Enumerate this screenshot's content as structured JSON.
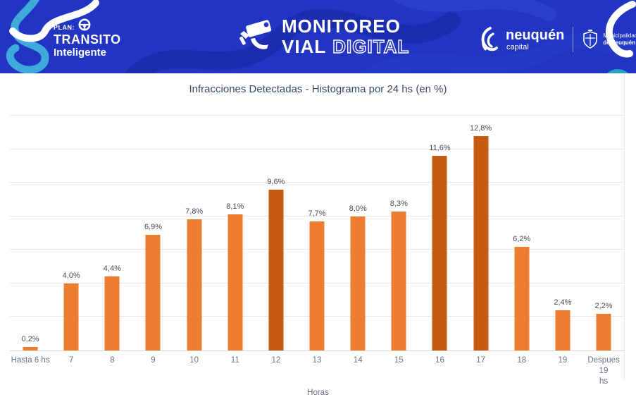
{
  "header": {
    "plan_logo": {
      "plan": "PLAN:",
      "line1": "TRANSITO",
      "line2": "Inteligente"
    },
    "brand": {
      "line1": "MONITOREO",
      "line2_solid": "VIAL",
      "line2_outline": "DIGITAL"
    },
    "neuquen_capital": {
      "name": "neuquén",
      "sub": "capital"
    },
    "municipalidad": {
      "line1": "Municipalidad",
      "line2": "de Neuquén"
    },
    "colors": {
      "banner_bg": "#2135c2",
      "squiggle_light_blue": "#3fa9dc",
      "squiggle_white": "#ffffff",
      "teal_blob": "#2ba3c4"
    }
  },
  "chart_data": {
    "type": "bar",
    "title": "Infracciones Detectadas - Histograma por 24 hs (en %)",
    "xlabel": "Horas",
    "ylabel": "",
    "ylim": [
      0,
      14
    ],
    "grid_step": 2,
    "grid": true,
    "legend": "none",
    "categories": [
      "Hasta 6 hs",
      "7",
      "8",
      "9",
      "10",
      "11",
      "12",
      "13",
      "14",
      "15",
      "16",
      "17",
      "18",
      "19",
      "Despues 19 hs"
    ],
    "display_categories": [
      "Hasta 6 hs",
      "7",
      "8",
      "9",
      "10",
      "11",
      "12",
      "13",
      "14",
      "15",
      "16",
      "17",
      "18",
      "19",
      "Despues 19\nhs"
    ],
    "values": [
      0.2,
      4.0,
      4.4,
      6.9,
      7.8,
      8.1,
      9.6,
      7.7,
      8.0,
      8.3,
      11.6,
      12.8,
      6.2,
      2.4,
      2.2
    ],
    "labels": [
      "0,2%",
      "4,0%",
      "4,4%",
      "6,9%",
      "7,8%",
      "8,1%",
      "9,6%",
      "7,7%",
      "8,0%",
      "8,3%",
      "11,6%",
      "12,8%",
      "6,2%",
      "2,4%",
      "2,2%"
    ],
    "bar_colors": {
      "default": "#ED7D31",
      "highlight": "#C55A11"
    },
    "highlight_indexes": [
      6,
      10,
      11
    ],
    "gridline_color": "#e8e8e8",
    "axis_line_color": "#d6d6d6",
    "label_color": "#454d57",
    "tick_color": "#687683",
    "title_color": "#3a4a68"
  }
}
